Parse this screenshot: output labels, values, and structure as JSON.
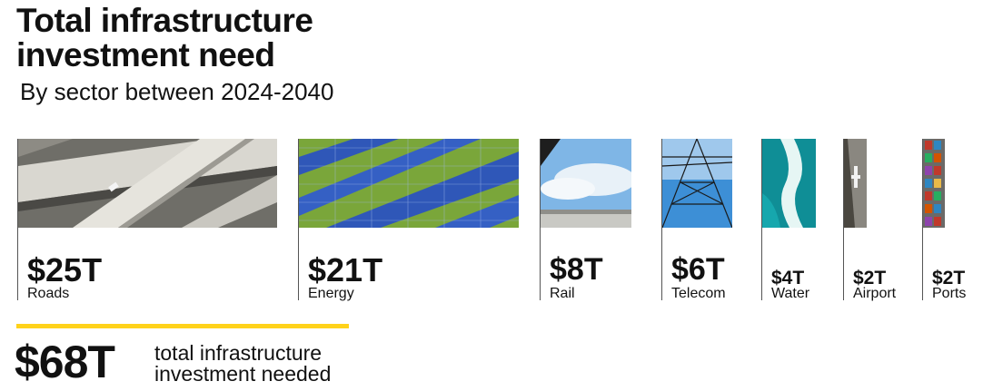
{
  "header": {
    "title_line1": "Total infrastructure",
    "title_line2": "investment need",
    "subtitle": "By sector between 2024-2040"
  },
  "chart_data": {
    "type": "bar",
    "title": "Total infrastructure investment need",
    "subtitle": "By sector between 2024-2040",
    "categories": [
      "Roads",
      "Energy",
      "Rail",
      "Telecom",
      "Water",
      "Airport",
      "Ports"
    ],
    "values": [
      25,
      21,
      8,
      6,
      4,
      2,
      2
    ],
    "value_labels": [
      "$25T",
      "$21T",
      "$8T",
      "$6T",
      "$4T",
      "$2T",
      "$2T"
    ],
    "unit": "trillion USD",
    "total": 68,
    "total_label": "$68T",
    "total_text_line1": "total infrastructure",
    "total_text_line2": "investment needed"
  },
  "colors": {
    "accent": "#ffd21a",
    "text": "#111111"
  },
  "icons": [
    "roads-photo",
    "energy-photo",
    "rail-photo",
    "telecom-photo",
    "water-photo",
    "airport-photo",
    "ports-photo"
  ]
}
